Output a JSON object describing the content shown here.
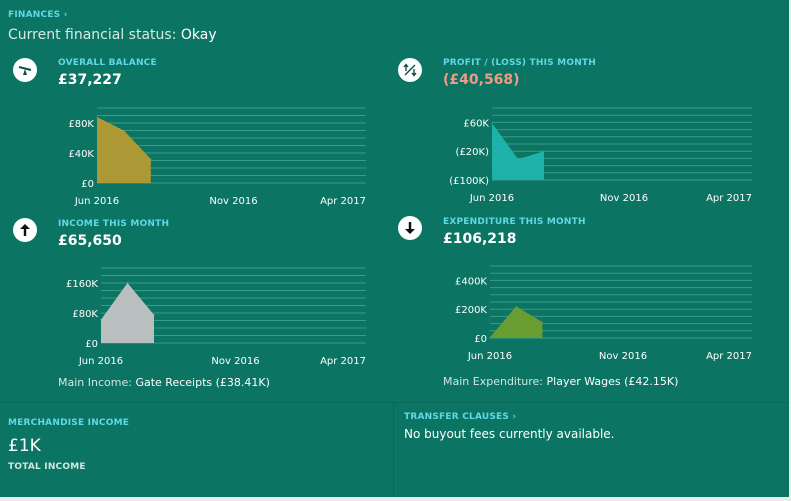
{
  "header": {
    "section_link": "FINANCES",
    "status_label": "Current financial status:",
    "status_value": "Okay"
  },
  "panels": {
    "balance": {
      "icon": "seesaw-icon",
      "label": "OVERALL BALANCE",
      "value": "£37,227"
    },
    "profit": {
      "icon": "transfer-arrows-icon",
      "label": "PROFIT / (LOSS) THIS MONTH",
      "value": "(£40,568)"
    },
    "income": {
      "icon": "arrow-up-icon",
      "label": "INCOME THIS MONTH",
      "value": "£65,650",
      "main_label": "Main Income:",
      "main_value": "Gate Receipts (£38.41K)"
    },
    "expenditure": {
      "icon": "arrow-down-icon",
      "label": "EXPENDITURE THIS MONTH",
      "value": "£106,218",
      "main_label": "Main Expenditure:",
      "main_value": "Player Wages (£42.15K)"
    }
  },
  "bottom": {
    "merch_label": "MERCHANDISE INCOME",
    "merch_value": "£1K",
    "merch_sub": "TOTAL INCOME",
    "transfer_link": "TRANSFER CLAUSES",
    "transfer_text": "No buyout fees currently available."
  },
  "colors": {
    "background": "#0c7463",
    "caption": "#5fd9e6",
    "negative": "#f29a86",
    "balance_fill": "#b59a32",
    "profit_fill": "#1fb5ad",
    "income_fill": "#c3c3c3",
    "expenditure_fill": "#6f9e2e"
  },
  "chart_data": [
    {
      "id": "balance",
      "type": "area",
      "x_labels": [
        "Jun 2016",
        "Nov 2016",
        "Apr 2017"
      ],
      "x_range": [
        0,
        10
      ],
      "y_ticks": [
        0,
        40000,
        80000
      ],
      "y_tick_labels": [
        "£0",
        "£40K",
        "£80K"
      ],
      "y_range": [
        0,
        100000
      ],
      "x": [
        0,
        1,
        2
      ],
      "values": [
        88000,
        70000,
        32000
      ],
      "baseline": 0
    },
    {
      "id": "profit",
      "type": "area",
      "x_labels": [
        "Jun 2016",
        "Nov 2016",
        "Apr 2017"
      ],
      "x_range": [
        0,
        10
      ],
      "y_ticks": [
        -100000,
        -20000,
        60000
      ],
      "y_tick_labels": [
        "(£100K)",
        "(£20K)",
        "£60K"
      ],
      "y_range": [
        -100000,
        100000
      ],
      "x": [
        0,
        1,
        2
      ],
      "values": [
        58000,
        -42000,
        -20000
      ],
      "baseline": -100000
    },
    {
      "id": "income",
      "type": "area",
      "x_labels": [
        "Jun 2016",
        "Nov 2016",
        "Apr 2017"
      ],
      "x_range": [
        0,
        10
      ],
      "y_ticks": [
        0,
        80000,
        160000
      ],
      "y_tick_labels": [
        "£0",
        "£80K",
        "£160K"
      ],
      "y_range": [
        0,
        200000
      ],
      "x": [
        0,
        1,
        2
      ],
      "values": [
        62000,
        160000,
        75000
      ],
      "baseline": 0
    },
    {
      "id": "expenditure",
      "type": "area",
      "x_labels": [
        "Jun 2016",
        "Nov 2016",
        "Apr 2017"
      ],
      "x_range": [
        0,
        10
      ],
      "y_ticks": [
        0,
        200000,
        400000
      ],
      "y_tick_labels": [
        "£0",
        "£200K",
        "£400K"
      ],
      "y_range": [
        0,
        500000
      ],
      "x": [
        0,
        1,
        2
      ],
      "values": [
        5000,
        220000,
        110000
      ],
      "baseline": 0
    }
  ]
}
